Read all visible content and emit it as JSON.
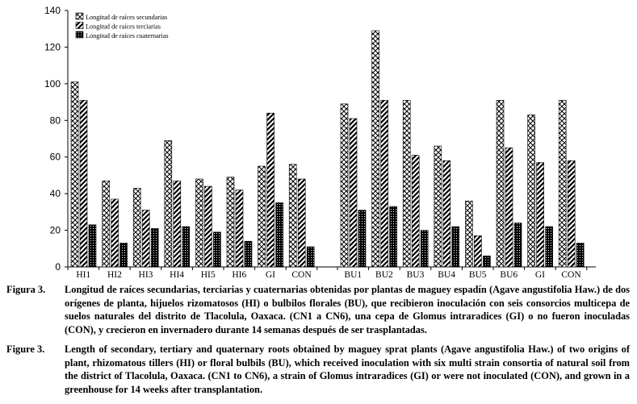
{
  "chart_data": {
    "type": "bar",
    "xlabel": "",
    "ylabel": "",
    "ylim": [
      0,
      140
    ],
    "yticks": [
      0,
      20,
      40,
      60,
      80,
      100,
      120,
      140
    ],
    "grid": false,
    "legend_position": "top-left",
    "legend": [
      {
        "name": "Longitud de raíces secundarias",
        "pattern": "cross"
      },
      {
        "name": "Longitud de raíces terciarias",
        "pattern": "diagonal"
      },
      {
        "name": "Longitud de raíces cuaternarias",
        "pattern": "dots"
      }
    ],
    "groups": [
      {
        "name": "HI",
        "categories": [
          "HI1",
          "HI2",
          "HI3",
          "HI4",
          "HI5",
          "HI6",
          "GI",
          "CON"
        ]
      },
      {
        "name": "BU",
        "categories": [
          "BU1",
          "BU2",
          "BU3",
          "BU4",
          "BU5",
          "BU6",
          "GI",
          "CON"
        ]
      }
    ],
    "series": [
      {
        "name": "Longitud de raíces secundarias",
        "values": [
          101,
          47,
          43,
          69,
          48,
          49,
          55,
          56,
          89,
          129,
          91,
          66,
          36,
          91,
          83,
          91
        ]
      },
      {
        "name": "Longitud de raíces terciarias",
        "values": [
          91,
          37,
          31,
          47,
          44,
          42,
          84,
          48,
          81,
          91,
          61,
          58,
          17,
          65,
          57,
          58
        ]
      },
      {
        "name": "Longitud de raíces cuaternarias",
        "values": [
          23,
          13,
          21,
          22,
          19,
          14,
          35,
          11,
          31,
          33,
          20,
          22,
          6,
          24,
          22,
          13
        ]
      }
    ]
  },
  "caption_es": {
    "label": "Figura 3.",
    "text": "Longitud de raíces secundarias, terciarias y cuaternarias obtenidas por plantas de maguey espadín (Agave angustifolia Haw.) de dos orígenes de planta, hijuelos rizomatosos (HI) o bulbilos florales (BU), que recibieron inoculación con seis consorcios multicepa de suelos naturales del distrito de Tlacolula, Oaxaca. (CN1 a CN6), una cepa de Glomus intraradices (GI) o no fueron inoculadas (CON), y crecieron en invernadero durante 14 semanas después de ser trasplantadas."
  },
  "caption_en": {
    "label": "Figure 3.",
    "text": "Length of secondary, tertiary and quaternary roots obtained by maguey sprat plants (Agave angustifolia Haw.) of two origins of plant, rhizomatous tillers (HI) or floral bulbils (BU), which received inoculation with six multi strain consortia of natural soil from the district of Tlacolula, Oaxaca. (CN1 to CN6), a strain of Glomus intraradices (GI) or were not inoculated (CON), and grown in a greenhouse for 14 weeks after transplantation."
  }
}
